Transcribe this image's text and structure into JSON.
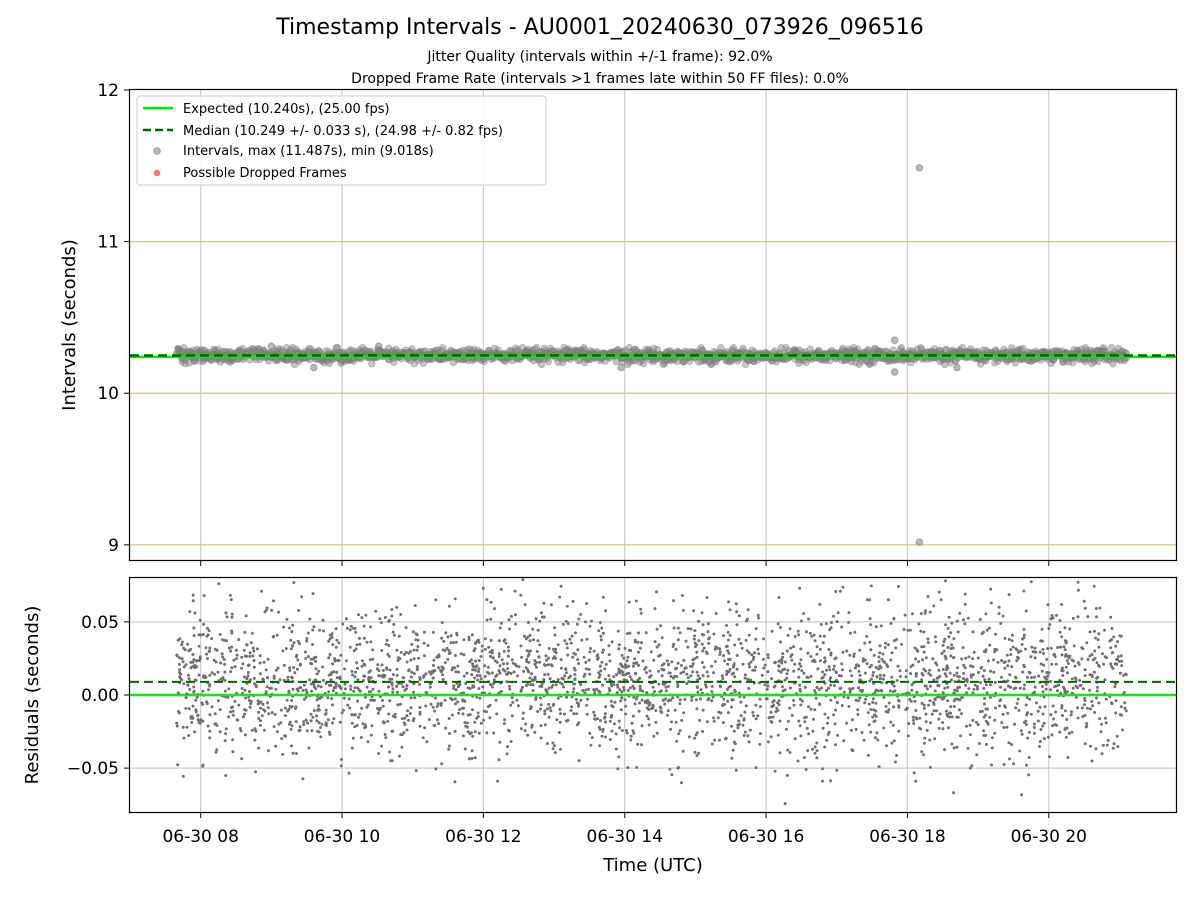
{
  "title": "Timestamp Intervals - AU0001_20240630_073926_096516",
  "subtitle_lines": [
    "Jitter Quality (intervals within +/-1 frame): 92.0%",
    "Dropped Frame Rate (intervals >1 frames late within 50 FF files): 0.0%"
  ],
  "chart_data": [
    {
      "type": "scatter",
      "panel": "top",
      "ylabel": "Intervals (seconds)",
      "xlabel": "",
      "ylim": [
        8.9,
        12.0
      ],
      "xlim_hours": [
        7.0,
        21.8
      ],
      "y_ticks": [
        {
          "value": 9,
          "label": "9"
        },
        {
          "value": 10,
          "label": "10"
        },
        {
          "value": 11,
          "label": "11"
        },
        {
          "value": 12,
          "label": "12"
        }
      ],
      "reference_lines": [
        9,
        10,
        11
      ],
      "grid": "vertical",
      "legend_position": "top-left",
      "legend": [
        {
          "label": "Expected (10.240s), (25.00 fps)",
          "kind": "line-solid",
          "color": "#00ee00"
        },
        {
          "label": "Median (10.249 +/- 0.033 s), (24.98 +/- 0.82 fps)",
          "kind": "line-dashed",
          "color": "#006400"
        },
        {
          "label": "Intervals, max (11.487s), min (9.018s)",
          "kind": "marker",
          "color": "#808080"
        },
        {
          "label": "Possible Dropped Frames",
          "kind": "marker",
          "color": "#ff4040"
        }
      ],
      "expected": 10.24,
      "median": 10.249,
      "median_std": 0.033,
      "max": 11.487,
      "min": 9.018,
      "data_start_hour": 7.66,
      "data_end_hour": 21.1,
      "outliers": [
        {
          "hour": 18.17,
          "value": 11.487
        },
        {
          "hour": 18.17,
          "value": 9.018
        },
        {
          "hour": 17.82,
          "value": 10.35
        },
        {
          "hour": 17.82,
          "value": 10.14
        },
        {
          "hour": 9.0,
          "value": 10.31
        },
        {
          "hour": 10.52,
          "value": 10.31
        },
        {
          "hour": 13.95,
          "value": 10.17
        },
        {
          "hour": 9.6,
          "value": 10.17
        },
        {
          "hour": 18.7,
          "value": 10.17
        }
      ],
      "colors": {
        "points": "#808080",
        "reference": "#d9bf7a",
        "grid": "#cccccc"
      }
    },
    {
      "type": "scatter",
      "panel": "bottom",
      "ylabel": "Residuals (seconds)",
      "xlabel": "Time (UTC)",
      "ylim": [
        -0.08,
        0.08
      ],
      "xlim_hours": [
        7.0,
        21.8
      ],
      "y_ticks": [
        {
          "value": -0.05,
          "label": "−0.05"
        },
        {
          "value": 0.0,
          "label": "0.00"
        },
        {
          "value": 0.05,
          "label": "0.05"
        }
      ],
      "x_ticks": [
        {
          "hour": 8,
          "label": "06-30 08"
        },
        {
          "hour": 10,
          "label": "06-30 10"
        },
        {
          "hour": 12,
          "label": "06-30 12"
        },
        {
          "hour": 14,
          "label": "06-30 14"
        },
        {
          "hour": 16,
          "label": "06-30 16"
        },
        {
          "hour": 18,
          "label": "06-30 18"
        },
        {
          "hour": 20,
          "label": "06-30 20"
        }
      ],
      "grid": "both",
      "zero_line": 0.0,
      "median_residual": 0.009,
      "residual_std": 0.025,
      "data_start_hour": 7.66,
      "data_end_hour": 21.1,
      "colors": {
        "points": "#707070",
        "zero": "#00ee00",
        "median": "#006400",
        "grid": "#cccccc"
      }
    }
  ]
}
